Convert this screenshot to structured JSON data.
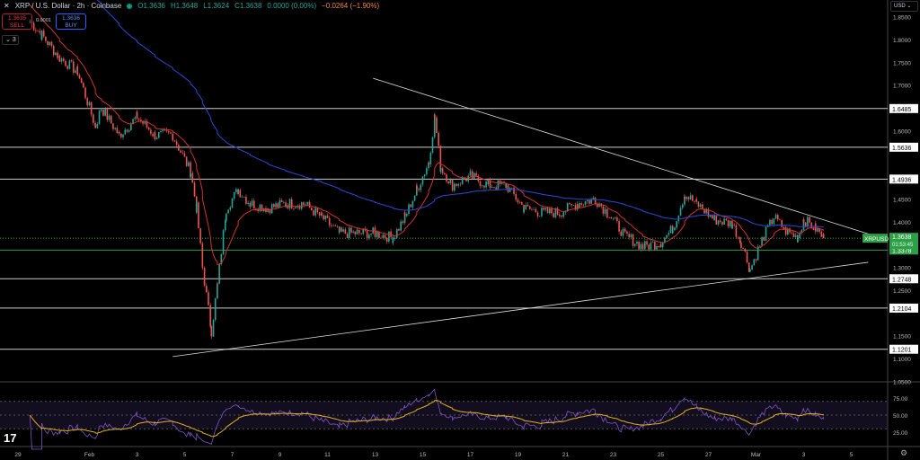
{
  "header": {
    "title": "XRP / U.S. Dollar · 2h · Coinbase",
    "open": "O1.3636",
    "high": "H1.3648",
    "low": "L1.3624",
    "close": "C1.3638",
    "change": "0.0000 (0.00%)",
    "change_day": "−0.0264 (−1.90%)"
  },
  "trade": {
    "sell_price": "1.3635",
    "sell_label": "SELL",
    "buy_price": "1.3636",
    "buy_label": "BUY",
    "spread": "0.0001",
    "indicators_count": "3"
  },
  "axis": {
    "currency": "USD"
  },
  "colors": {
    "up": "#26a69a",
    "down": "#ef5350",
    "ma_fast": "#d2342b",
    "ma_slow": "#2a4bd7",
    "rsi": "#7e57c2",
    "rsi_ma": "#e0b31c",
    "last": "#2e9e47"
  },
  "chart_data": {
    "type": "candlestick",
    "symbol_tag": "XRPUSD",
    "last_price": "1.3638",
    "countdown": "01:53:45",
    "ylim": [
      1.05,
      1.87
    ],
    "price_ticks": [
      "1.8500",
      "1.8000",
      "1.7500",
      "1.7000",
      "1.6000",
      "1.4500",
      "1.4000",
      "1.3000",
      "1.2500",
      "1.1500",
      "1.1000",
      "1.0500"
    ],
    "levels": [
      {
        "price": 1.6485,
        "label": "1.6485"
      },
      {
        "price": 1.5636,
        "label": "1.5636"
      },
      {
        "price": 1.4936,
        "label": "1.4936"
      },
      {
        "price": 1.3378,
        "label": "1.3378",
        "highlight": true
      },
      {
        "price": 1.2748,
        "label": "1.2748"
      },
      {
        "price": 1.2104,
        "label": "1.2104"
      },
      {
        "price": 1.1201,
        "label": "1.1201"
      }
    ],
    "trendlines": [
      {
        "from": [
          "Feb 12 22:00",
          1.715
        ],
        "to": [
          "Mar 5 22:00",
          1.37
        ]
      },
      {
        "from": [
          "Feb 4 12:00",
          1.104
        ],
        "to": [
          "Mar 5 17:00",
          1.311
        ]
      }
    ],
    "time_ticks": [
      {
        "label": "29",
        "date": "Jan 29 00:00"
      },
      {
        "label": "Feb",
        "date": "Feb 1 00:00"
      },
      {
        "label": "3",
        "date": "Feb 3 00:00"
      },
      {
        "label": "5",
        "date": "Feb 5 00:00"
      },
      {
        "label": "7",
        "date": "Feb 7 00:00"
      },
      {
        "label": "9",
        "date": "Feb 9 00:00"
      },
      {
        "label": "11",
        "date": "Feb 11 00:00"
      },
      {
        "label": "13",
        "date": "Feb 13 00:00"
      },
      {
        "label": "15",
        "date": "Feb 15 00:00"
      },
      {
        "label": "17",
        "date": "Feb 17 00:00"
      },
      {
        "label": "19",
        "date": "Feb 19 00:00"
      },
      {
        "label": "21",
        "date": "Feb 21 00:00"
      },
      {
        "label": "23",
        "date": "Feb 23 00:00"
      },
      {
        "label": "25",
        "date": "Feb 25 00:00"
      },
      {
        "label": "27",
        "date": "Feb 27 00:00"
      },
      {
        "label": "Mar",
        "date": "Mar 1 00:00"
      },
      {
        "label": "3",
        "date": "Mar 3 00:00"
      },
      {
        "label": "5",
        "date": "Mar 5 00:00"
      }
    ],
    "approx_close": [
      [
        "Jan 29 12:00",
        1.84
      ],
      [
        "Jan 30 00:00",
        1.81
      ],
      [
        "Jan 30 18:00",
        1.76
      ],
      [
        "Jan 31 12:00",
        1.73
      ],
      [
        "Feb 1 06:00",
        1.61
      ],
      [
        "Feb 1 12:00",
        1.65
      ],
      [
        "Feb 2 06:00",
        1.59
      ],
      [
        "Feb 3 00:00",
        1.63
      ],
      [
        "Feb 3 18:00",
        1.59
      ],
      [
        "Feb 4 12:00",
        1.59
      ],
      [
        "Feb 5 06:00",
        1.51
      ],
      [
        "Feb 5 12:00",
        1.43
      ],
      [
        "Feb 5 18:00",
        1.3
      ],
      [
        "Feb 6 03:00",
        1.16
      ],
      [
        "Feb 6 09:00",
        1.26
      ],
      [
        "Feb 6 18:00",
        1.43
      ],
      [
        "Feb 7 06:00",
        1.47
      ],
      [
        "Feb 7 18:00",
        1.44
      ],
      [
        "Feb 8 12:00",
        1.43
      ],
      [
        "Feb 9 06:00",
        1.44
      ],
      [
        "Feb 10 00:00",
        1.44
      ],
      [
        "Feb 10 18:00",
        1.41
      ],
      [
        "Feb 11 12:00",
        1.375
      ],
      [
        "Feb 12 06:00",
        1.375
      ],
      [
        "Feb 13 00:00",
        1.375
      ],
      [
        "Feb 13 18:00",
        1.365
      ],
      [
        "Feb 14 06:00",
        1.41
      ],
      [
        "Feb 14 18:00",
        1.47
      ],
      [
        "Feb 15 06:00",
        1.53
      ],
      [
        "Feb 15 12:00",
        1.63
      ],
      [
        "Feb 15 18:00",
        1.52
      ],
      [
        "Feb 16 06:00",
        1.48
      ],
      [
        "Feb 17 00:00",
        1.5
      ],
      [
        "Feb 17 18:00",
        1.48
      ],
      [
        "Feb 18 12:00",
        1.48
      ],
      [
        "Feb 19 06:00",
        1.43
      ],
      [
        "Feb 20 00:00",
        1.42
      ],
      [
        "Feb 20 18:00",
        1.42
      ],
      [
        "Feb 21 12:00",
        1.44
      ],
      [
        "Feb 22 06:00",
        1.45
      ],
      [
        "Feb 22 18:00",
        1.42
      ],
      [
        "Feb 23 12:00",
        1.37
      ],
      [
        "Feb 24 06:00",
        1.345
      ],
      [
        "Feb 25 00:00",
        1.355
      ],
      [
        "Feb 25 12:00",
        1.385
      ],
      [
        "Feb 26 00:00",
        1.46
      ],
      [
        "Feb 26 12:00",
        1.44
      ],
      [
        "Feb 27 06:00",
        1.405
      ],
      [
        "Feb 28 00:00",
        1.395
      ],
      [
        "Feb 28 09:00",
        1.355
      ],
      [
        "Feb 28 18:00",
        1.295
      ],
      [
        "Mar 1 06:00",
        1.36
      ],
      [
        "Mar 1 18:00",
        1.41
      ],
      [
        "Mar 2 06:00",
        1.38
      ],
      [
        "Mar 2 18:00",
        1.365
      ],
      [
        "Mar 3 00:00",
        1.405
      ],
      [
        "Mar 3 12:00",
        1.385
      ],
      [
        "Mar 3 20:00",
        1.3638
      ]
    ],
    "rsi": {
      "ticks": [
        "75.00",
        "50.00",
        "25.00"
      ],
      "levels": [
        70,
        50,
        30
      ]
    }
  }
}
